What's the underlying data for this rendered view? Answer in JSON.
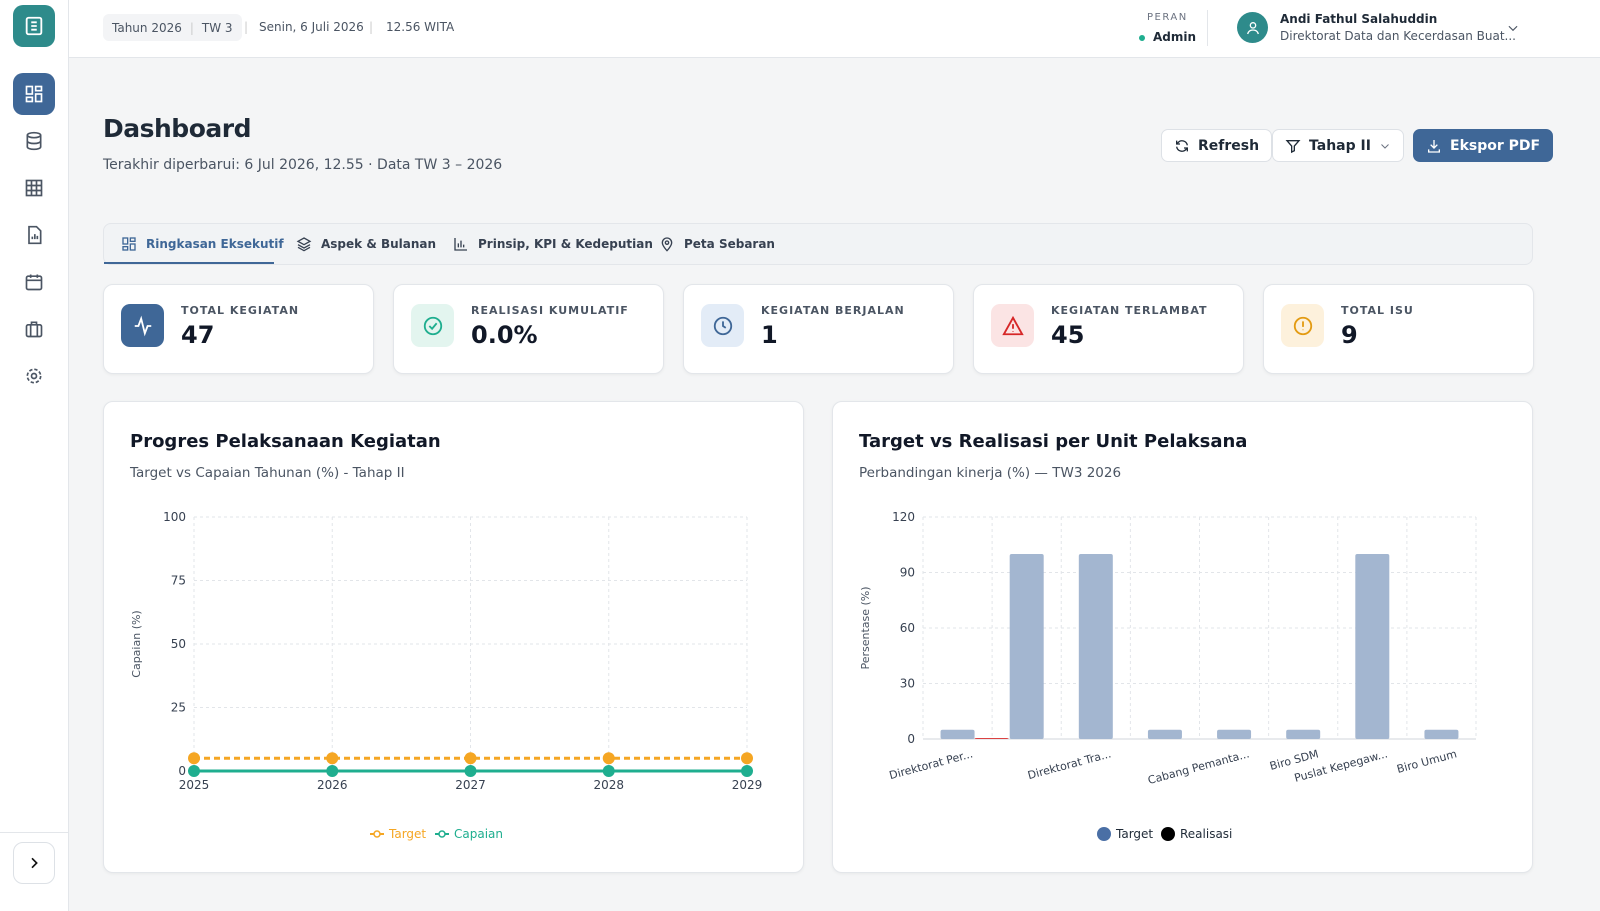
{
  "header": {
    "year": "Tahun 2026",
    "quarter": "TW 3",
    "date": "Senin, 6 Juli 2026",
    "time": "12.56 WITA",
    "role_label": "PERAN",
    "role": "Admin",
    "user_name": "Andi Fathul Salahuddin",
    "user_unit": "Direktorat Data dan Kecerdasan Buat..."
  },
  "page": {
    "title": "Dashboard",
    "subtitle": "Terakhir diperbarui: 6 Jul 2026, 12.55 · Data TW 3 – 2026",
    "buttons": [
      "Refresh",
      "Tahap II",
      "Ekspor PDF"
    ]
  },
  "tabs": [
    "Ringkasan Eksekutif",
    "Aspek & Bulanan",
    "Prinsip, KPI & Kedeputian",
    "Peta Sebaran"
  ],
  "kpis": [
    {
      "label": "TOTAL KEGIATAN",
      "value": "47"
    },
    {
      "label": "REALISASI KUMULATIF",
      "value": "0.0%"
    },
    {
      "label": "KEGIATAN BERJALAN",
      "value": "1"
    },
    {
      "label": "KEGIATAN TERLAMBAT",
      "value": "45"
    },
    {
      "label": "TOTAL ISU",
      "value": "9"
    }
  ],
  "chart_data": [
    {
      "type": "line",
      "title": "Progres Pelaksanaan Kegiatan",
      "subtitle": "Target vs Capaian Tahunan (%) - Tahap II",
      "ylabel": "Capaian (%)",
      "categories": [
        "2025",
        "2026",
        "2027",
        "2028",
        "2029"
      ],
      "ylim": [
        0,
        100
      ],
      "yticks": [
        0,
        25,
        50,
        75,
        100
      ],
      "grid": true,
      "series": [
        {
          "name": "Target",
          "color": "#f5a623",
          "dashed": true,
          "values": [
            5,
            5,
            5,
            5,
            5
          ]
        },
        {
          "name": "Capaian",
          "color": "#1fae8f",
          "values": [
            0,
            0,
            0,
            0,
            0
          ]
        }
      ]
    },
    {
      "type": "bar",
      "title": "Target vs Realisasi per Unit Pelaksana",
      "subtitle": "Perbandingan kinerja (%) — TW3 2026",
      "ylabel": "Persentase (%)",
      "categories": [
        "Direktorat Per...",
        null,
        "Direktorat Tra...",
        null,
        "Cabang Pemanta...",
        "Biro SDM",
        "Puslat Kepegaw...",
        "Biro Umum"
      ],
      "ylim": [
        0,
        120
      ],
      "yticks": [
        0,
        30,
        60,
        90,
        120
      ],
      "grid": true,
      "series": [
        {
          "name": "Target",
          "color": "#a3b6d0",
          "legend_color": "#4a6fa5",
          "values": [
            5,
            100,
            100,
            5,
            5,
            5,
            100,
            5
          ]
        },
        {
          "name": "Realisasi",
          "color": "#d62728",
          "legend_color": "#000000",
          "values": [
            0.5,
            0,
            0,
            0,
            0,
            0,
            0,
            0
          ]
        }
      ]
    }
  ]
}
